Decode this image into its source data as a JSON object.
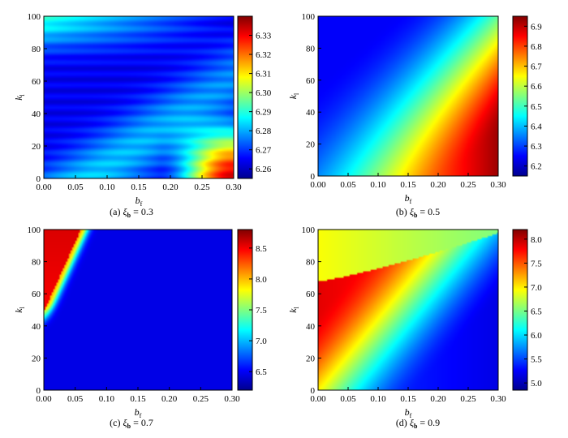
{
  "chart_data": [
    {
      "type": "heatmap",
      "id": "a",
      "caption_prefix": "(a) ",
      "caption_symbol": "ξ",
      "caption_sub": "b",
      "caption_value": " = 0.3",
      "xlabel": "b",
      "xlabel_sub": "f",
      "ylabel": "k",
      "ylabel_sub": "l",
      "xlim": [
        0,
        0.3
      ],
      "ylim": [
        0,
        100
      ],
      "xticks": [
        "0.00",
        "0.05",
        "0.10",
        "0.15",
        "0.20",
        "0.25",
        "0.30"
      ],
      "yticks": [
        "0",
        "20",
        "40",
        "60",
        "80",
        "100"
      ],
      "colorbar": {
        "min": 6.255,
        "max": 6.34,
        "ticks": [
          "6.26",
          "6.27",
          "6.28",
          "6.29",
          "6.30",
          "6.31",
          "6.32",
          "6.33"
        ]
      },
      "colormap": "jet"
    },
    {
      "type": "heatmap",
      "id": "b",
      "caption_prefix": "(b) ",
      "caption_symbol": "ξ",
      "caption_sub": "b",
      "caption_value": " = 0.5",
      "xlabel": "b",
      "xlabel_sub": "f",
      "ylabel": "k",
      "ylabel_sub": "l",
      "xlim": [
        0,
        0.3
      ],
      "ylim": [
        0,
        100
      ],
      "xticks": [
        "0.00",
        "0.05",
        "0.10",
        "0.15",
        "0.20",
        "0.25",
        "0.30"
      ],
      "yticks": [
        "0",
        "20",
        "40",
        "60",
        "80",
        "100"
      ],
      "colorbar": {
        "min": 6.15,
        "max": 6.95,
        "ticks": [
          "6.2",
          "6.3",
          "6.4",
          "6.5",
          "6.6",
          "6.7",
          "6.8",
          "6.9"
        ]
      },
      "colormap": "jet"
    },
    {
      "type": "heatmap",
      "id": "c",
      "caption_prefix": "(c) ",
      "caption_symbol": "ξ",
      "caption_sub": "b",
      "caption_value": " = 0.7",
      "xlabel": "b",
      "xlabel_sub": "f",
      "ylabel": "k",
      "ylabel_sub": "l",
      "xlim": [
        0,
        0.3
      ],
      "ylim": [
        0,
        100
      ],
      "xticks": [
        "0.00",
        "0.05",
        "0.10",
        "0.15",
        "0.20",
        "0.25",
        "0.30"
      ],
      "yticks": [
        "0",
        "20",
        "40",
        "60",
        "80",
        "100"
      ],
      "colorbar": {
        "min": 6.2,
        "max": 8.8,
        "ticks": [
          "6.5",
          "7.0",
          "7.5",
          "8.0",
          "8.5"
        ]
      },
      "colormap": "jet"
    },
    {
      "type": "heatmap",
      "id": "d",
      "caption_prefix": "(d) ",
      "caption_symbol": "ξ",
      "caption_sub": "b",
      "caption_value": " = 0.9",
      "xlabel": "b",
      "xlabel_sub": "f",
      "ylabel": "k",
      "ylabel_sub": "l",
      "xlim": [
        0,
        0.3
      ],
      "ylim": [
        0,
        100
      ],
      "xticks": [
        "0.00",
        "0.05",
        "0.10",
        "0.15",
        "0.20",
        "0.25",
        "0.30"
      ],
      "yticks": [
        "0",
        "20",
        "40",
        "60",
        "80",
        "100"
      ],
      "colorbar": {
        "min": 4.85,
        "max": 8.2,
        "ticks": [
          "5.0",
          "5.5",
          "6.0",
          "6.5",
          "7.0",
          "7.5",
          "8.0"
        ]
      },
      "colormap": "jet"
    }
  ]
}
